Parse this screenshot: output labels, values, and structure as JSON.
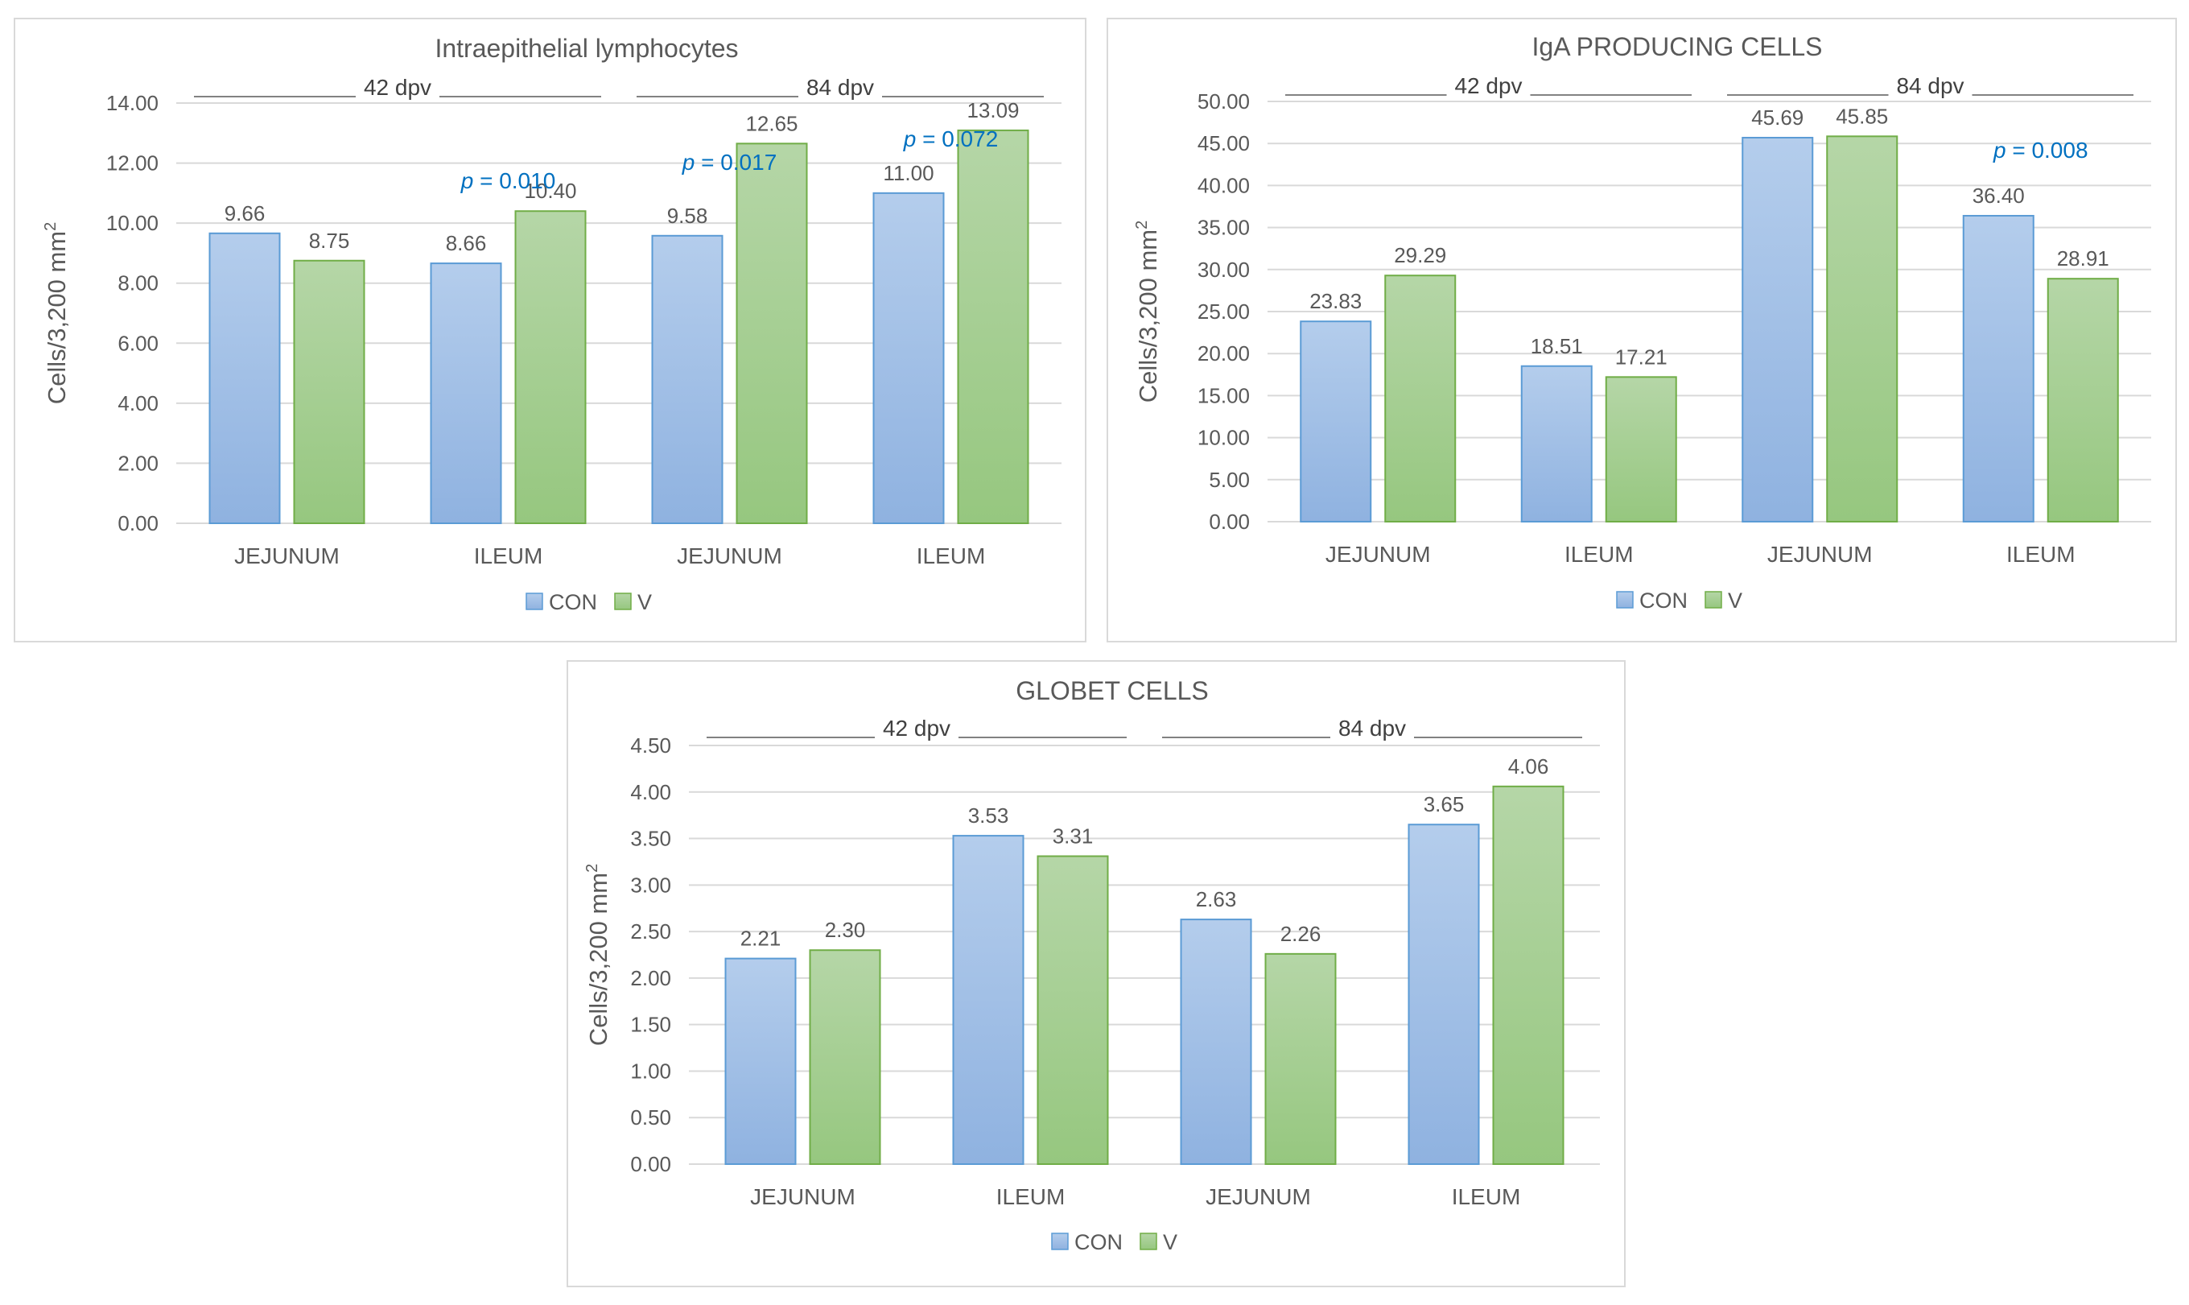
{
  "colors": {
    "con_light": "#b4cdec",
    "con_dark": "#8fb2e0",
    "con_edge": "#5b9bd5",
    "v_light": "#b5d6a7",
    "v_dark": "#96c77f",
    "v_edge": "#70ad47",
    "pvalue": "#0070c0"
  },
  "legend": {
    "con": "CON",
    "v": "V"
  },
  "chart_data": [
    {
      "type": "bar",
      "title": "Intraepithelial lymphocytes",
      "ylabel": "Cells/3,200 mm",
      "ylabel_sup": "2",
      "ylim": [
        0,
        14
      ],
      "yticks": [
        "0.00",
        "2.00",
        "4.00",
        "6.00",
        "8.00",
        "10.00",
        "12.00",
        "14.00"
      ],
      "categories": [
        "JEJUNUM",
        "ILEUM",
        "JEJUNUM",
        "ILEUM"
      ],
      "groups": [
        {
          "label": "42 dpv",
          "categories": [
            0,
            1
          ]
        },
        {
          "label": "84 dpv",
          "categories": [
            2,
            3
          ]
        }
      ],
      "series": [
        {
          "name": "CON",
          "values": [
            9.66,
            8.66,
            9.58,
            11.0
          ],
          "labels": [
            "9.66",
            "8.66",
            "9.58",
            "11.00"
          ]
        },
        {
          "name": "V",
          "values": [
            8.75,
            10.4,
            12.65,
            13.09
          ],
          "labels": [
            "8.75",
            "10.40",
            "12.65",
            "13.09"
          ]
        }
      ],
      "pvalues": [
        {
          "category": 1,
          "prefix": "p",
          "text": " = 0.010"
        },
        {
          "category": 2,
          "prefix": "p",
          "text": " = 0.017"
        },
        {
          "category": 3,
          "prefix": "p",
          "text": " = 0.072"
        }
      ]
    },
    {
      "type": "bar",
      "title": "IgA PRODUCING CELLS",
      "ylabel": "Cells/3,200 mm",
      "ylabel_sup": "2",
      "ylim": [
        0,
        50
      ],
      "yticks": [
        "0.00",
        "5.00",
        "10.00",
        "15.00",
        "20.00",
        "25.00",
        "30.00",
        "35.00",
        "40.00",
        "45.00",
        "50.00"
      ],
      "categories": [
        "JEJUNUM",
        "ILEUM",
        "JEJUNUM",
        "ILEUM"
      ],
      "groups": [
        {
          "label": "42 dpv",
          "categories": [
            0,
            1
          ]
        },
        {
          "label": "84 dpv",
          "categories": [
            2,
            3
          ]
        }
      ],
      "series": [
        {
          "name": "CON",
          "values": [
            23.83,
            18.51,
            45.69,
            36.4
          ],
          "labels": [
            "23.83",
            "18.51",
            "45.69",
            "36.40"
          ]
        },
        {
          "name": "V",
          "values": [
            29.29,
            17.21,
            45.85,
            28.91
          ],
          "labels": [
            "29.29",
            "17.21",
            "45.85",
            "28.91"
          ]
        }
      ],
      "pvalues": [
        {
          "category": 3,
          "prefix": "p",
          "text": " = 0.008"
        }
      ]
    },
    {
      "type": "bar",
      "title": "GLOBET CELLS",
      "ylabel": "Cells/3,200 mm",
      "ylabel_sup": "2",
      "ylim": [
        0,
        4.5
      ],
      "yticks": [
        "0.00",
        "0.50",
        "1.00",
        "1.50",
        "2.00",
        "2.50",
        "3.00",
        "3.50",
        "4.00",
        "4.50"
      ],
      "categories": [
        "JEJUNUM",
        "ILEUM",
        "JEJUNUM",
        "ILEUM"
      ],
      "groups": [
        {
          "label": "42 dpv",
          "categories": [
            0,
            1
          ]
        },
        {
          "label": "84 dpv",
          "categories": [
            2,
            3
          ]
        }
      ],
      "series": [
        {
          "name": "CON",
          "values": [
            2.21,
            3.53,
            2.63,
            3.65
          ],
          "labels": [
            "2.21",
            "3.53",
            "2.63",
            "3.65"
          ]
        },
        {
          "name": "V",
          "values": [
            2.3,
            3.31,
            2.26,
            4.06
          ],
          "labels": [
            "2.30",
            "3.31",
            "2.26",
            "4.06"
          ]
        }
      ],
      "pvalues": []
    }
  ]
}
